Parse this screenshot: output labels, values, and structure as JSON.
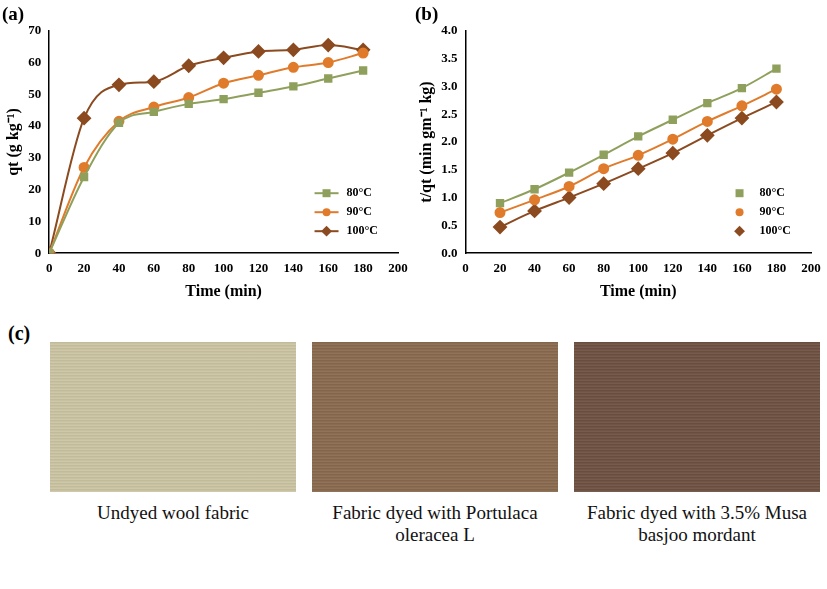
{
  "chart_data": [
    {
      "type": "line",
      "title": "(a)",
      "x_label": "Time (min)",
      "y_label": "qt (g kg⁻¹)",
      "x": [
        0,
        20,
        40,
        60,
        80,
        100,
        120,
        140,
        160,
        180
      ],
      "series": [
        {
          "name": "80°C",
          "color": "#8fa05c",
          "marker": "square",
          "line_style": "solid",
          "values": [
            0,
            24,
            41,
            44.5,
            47,
            48.5,
            50.5,
            52.5,
            55,
            57.5
          ]
        },
        {
          "name": "90°C",
          "color": "#e07b2c",
          "marker": "circle",
          "line_style": "solid",
          "values": [
            0,
            27,
            41.5,
            46,
            49,
            53.5,
            56,
            58.5,
            60,
            63
          ]
        },
        {
          "name": "100°C",
          "color": "#8b4a1f",
          "marker": "diamond",
          "line_style": "solid",
          "values": [
            0,
            42.5,
            53,
            54,
            59,
            61.5,
            63.5,
            64,
            65.5,
            64
          ]
        }
      ],
      "xlim": [
        0,
        200
      ],
      "xticks": [
        0,
        20,
        40,
        60,
        80,
        100,
        120,
        140,
        160,
        180,
        200
      ],
      "ylim": [
        0,
        70
      ],
      "yticks": [
        0,
        10,
        20,
        30,
        40,
        50,
        60,
        70
      ],
      "grid": false,
      "legend": "lower right"
    },
    {
      "type": "line",
      "title": "(b)",
      "x_label": "Time (min)",
      "y_label": "t/qt (min gm⁻¹ kg)",
      "x": [
        20,
        40,
        60,
        80,
        100,
        120,
        140,
        160,
        180
      ],
      "series": [
        {
          "name": "80°C",
          "color": "#8fa05c",
          "marker": "square",
          "line_style": "solid",
          "values": [
            0.9,
            1.15,
            1.45,
            1.77,
            2.1,
            2.4,
            2.7,
            2.97,
            3.32
          ]
        },
        {
          "name": "90°C",
          "color": "#e07b2c",
          "marker": "circle",
          "line_style": "solid",
          "values": [
            0.73,
            0.96,
            1.2,
            1.52,
            1.76,
            2.05,
            2.37,
            2.65,
            2.95
          ]
        },
        {
          "name": "100°C",
          "color": "#8b4a1f",
          "marker": "diamond",
          "line_style": "solid",
          "values": [
            0.47,
            0.76,
            1.0,
            1.25,
            1.52,
            1.8,
            2.12,
            2.43,
            2.72
          ]
        }
      ],
      "xlim": [
        0,
        200
      ],
      "xticks": [
        0,
        20,
        40,
        60,
        80,
        100,
        120,
        140,
        160,
        180,
        200
      ],
      "ylim": [
        0,
        4
      ],
      "yticks": [
        {
          "value": 0,
          "label": "0.0"
        },
        0.5,
        {
          "value": 1,
          "label": "1.0"
        },
        1.5,
        {
          "value": 2,
          "label": "2.0"
        },
        2.5,
        {
          "value": 3,
          "label": "3.0"
        },
        3.5,
        {
          "value": 4,
          "label": "4.0"
        }
      ],
      "grid": false,
      "legend": "lower right"
    }
  ],
  "panel_c": {
    "label": "(c)",
    "images": [
      {
        "caption": "Undyed wool fabric",
        "color": "#cbc5a3"
      },
      {
        "caption": "Fabric dyed with Portulaca oleracea L",
        "color": "#8a6a4f"
      },
      {
        "caption": "Fabric dyed with 3.5% Musa basjoo mordant",
        "color": "#6f5141"
      }
    ]
  }
}
